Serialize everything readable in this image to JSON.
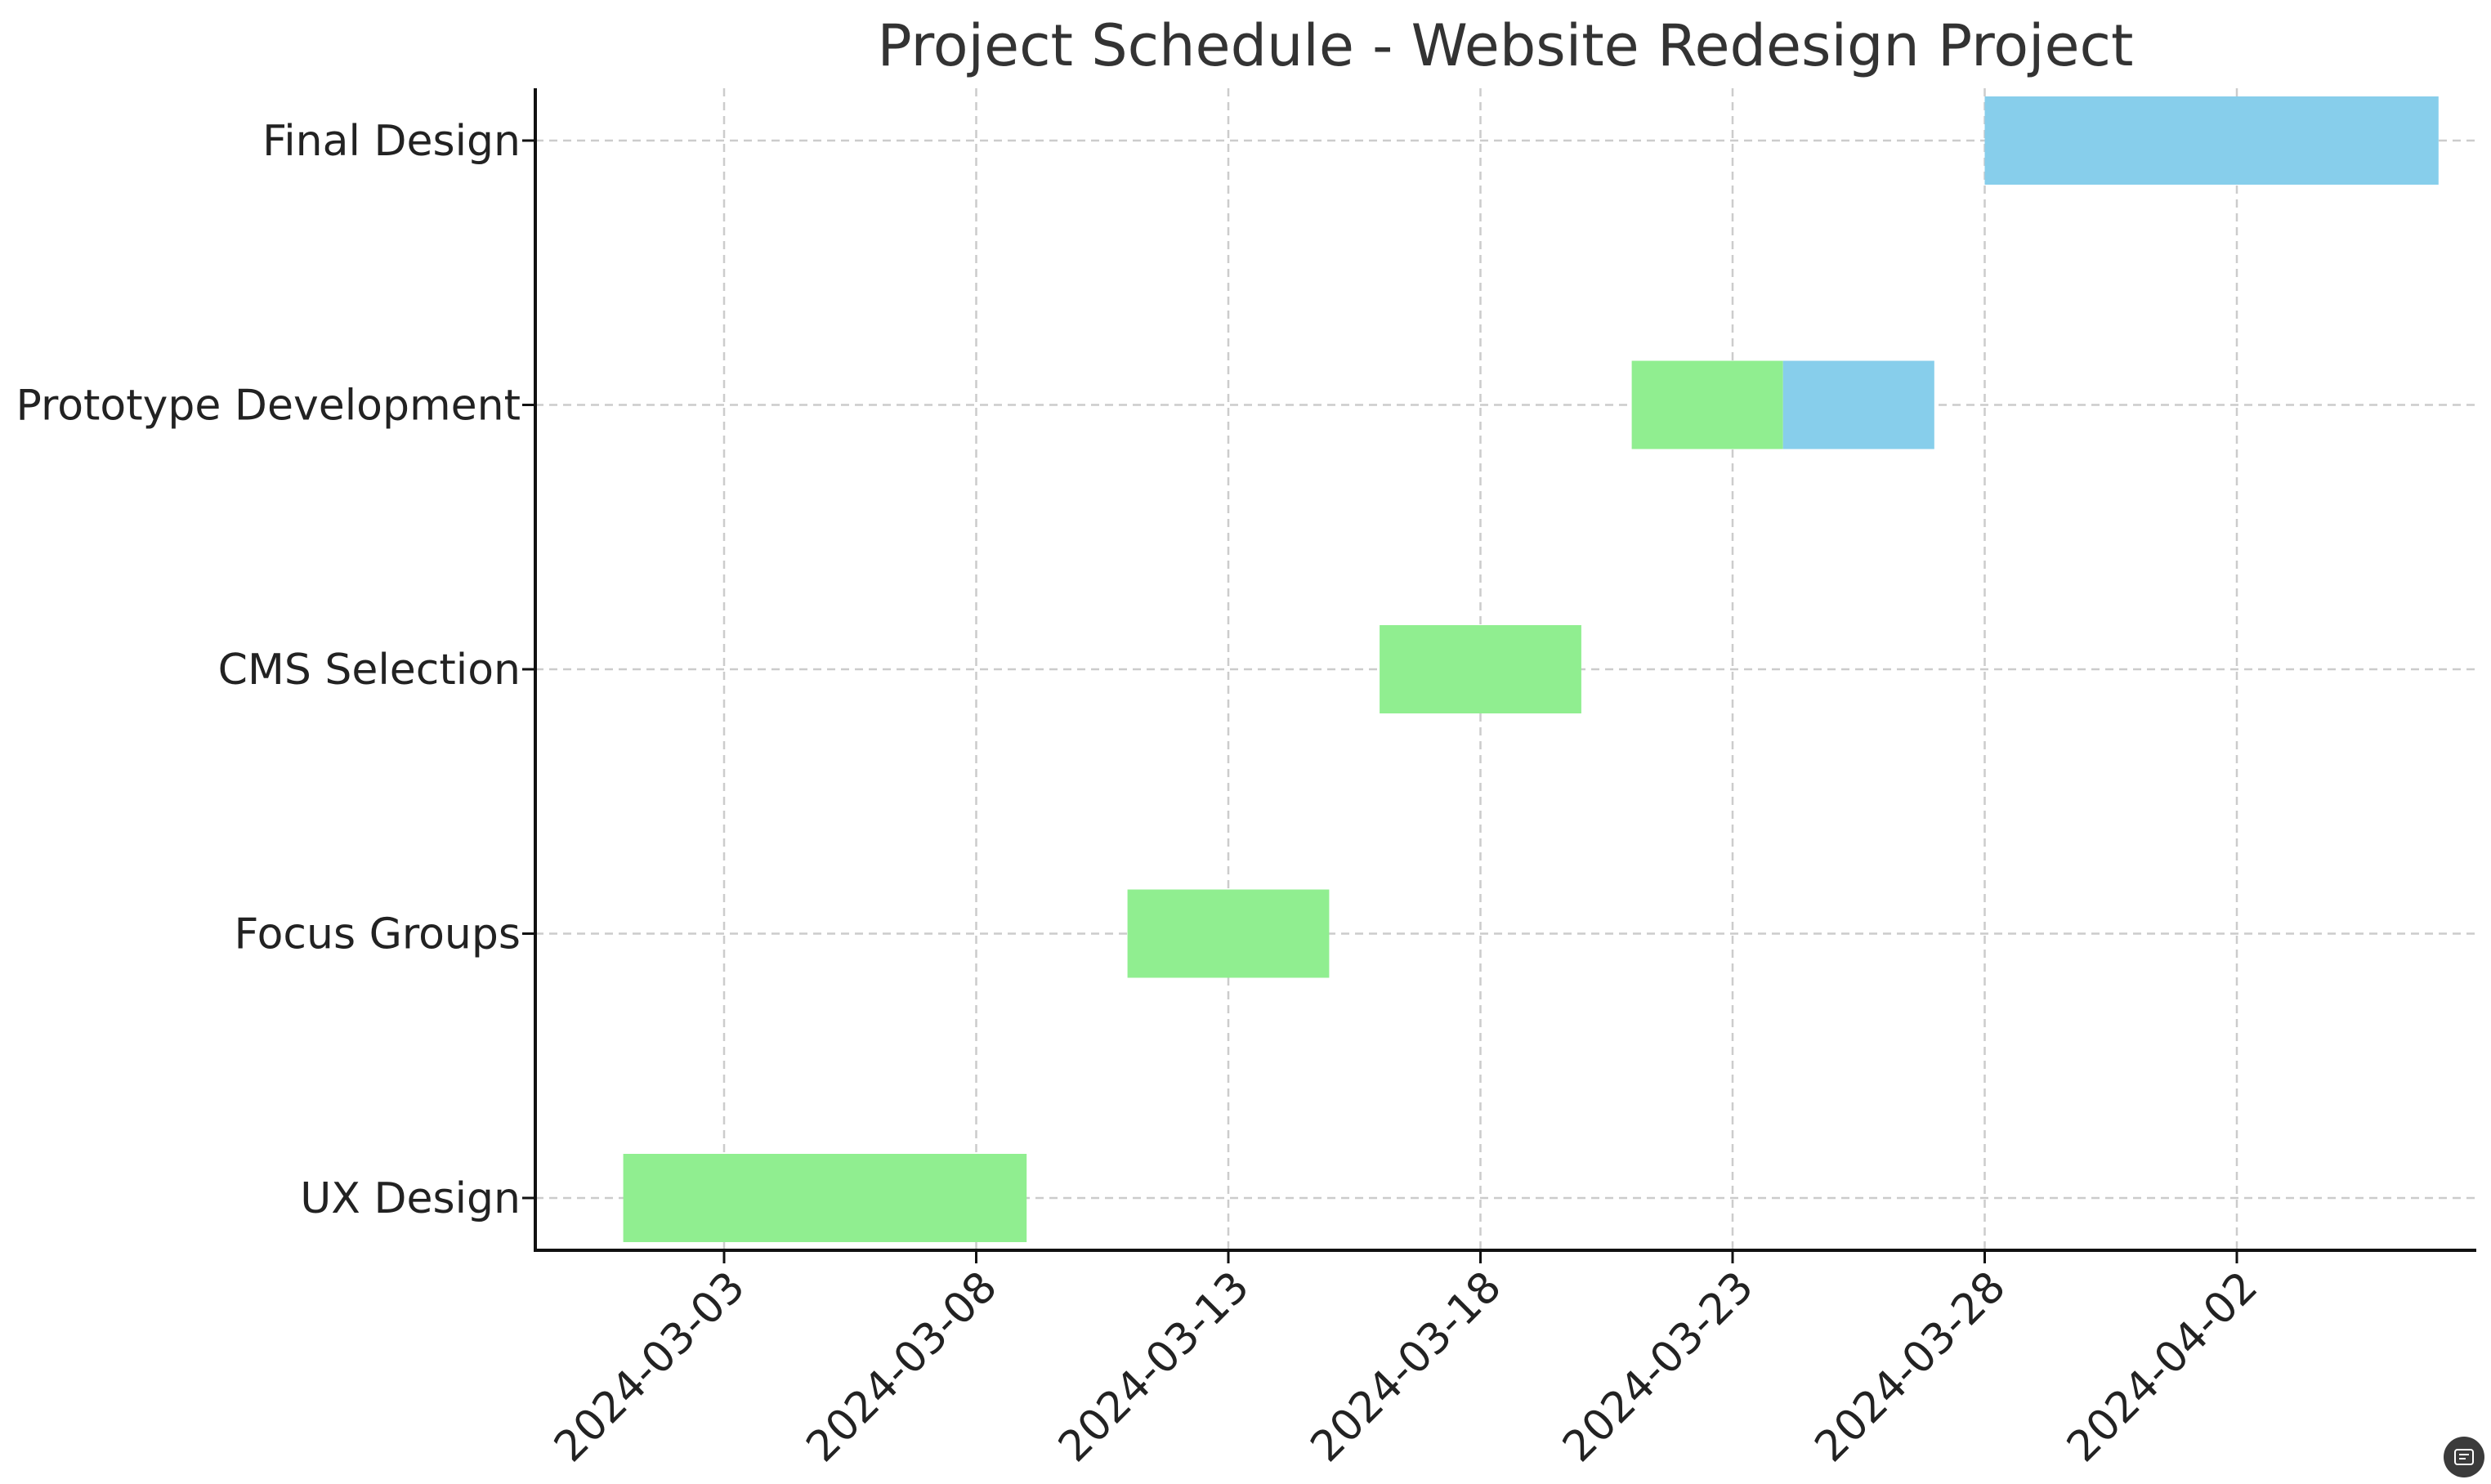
{
  "chart_data": {
    "type": "gantt",
    "title": "Project Schedule - Website Redesign Project",
    "xlabel": "",
    "ylabel": "",
    "x_axis_type": "date",
    "xlim": [
      "2024-02-26",
      "2024-04-10"
    ],
    "x_ticks": [
      "2024-03-03",
      "2024-03-08",
      "2024-03-13",
      "2024-03-18",
      "2024-03-23",
      "2024-03-28",
      "2024-04-02"
    ],
    "grid": true,
    "categories": [
      "UX Design",
      "Focus Groups",
      "CMS Selection",
      "Prototype Development",
      "Final Design"
    ],
    "segments": [
      {
        "task": "UX Design",
        "start": "2024-03-01",
        "end": "2024-03-09",
        "color": "#90EE90"
      },
      {
        "task": "Focus Groups",
        "start": "2024-03-11",
        "end": "2024-03-15",
        "color": "#90EE90"
      },
      {
        "task": "CMS Selection",
        "start": "2024-03-16",
        "end": "2024-03-20",
        "color": "#90EE90"
      },
      {
        "task": "Prototype Development",
        "start": "2024-03-21",
        "end": "2024-03-24",
        "color": "#90EE90"
      },
      {
        "task": "Prototype Development",
        "start": "2024-03-24",
        "end": "2024-03-27",
        "color": "#87CEEB"
      },
      {
        "task": "Final Design",
        "start": "2024-03-28",
        "end": "2024-04-06",
        "color": "#87CEEB"
      }
    ]
  },
  "icons": {
    "corner": "screenshot-icon"
  }
}
